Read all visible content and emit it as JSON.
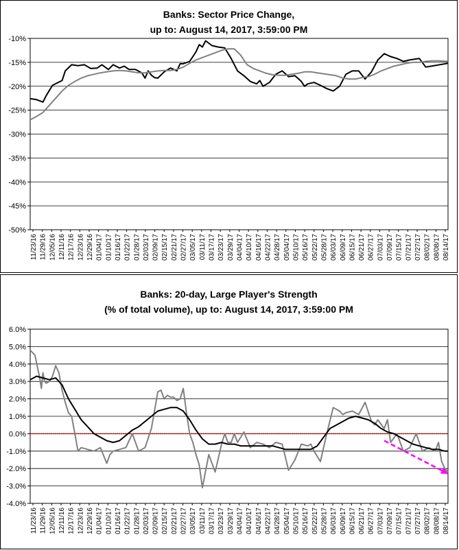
{
  "chart_data": [
    {
      "type": "line",
      "title": "Banks: Sector Price Change,",
      "subtitle": "up to: August 14, 2017, 3:59:00 PM",
      "ylim": [
        -0.5,
        -0.1
      ],
      "y_ticks": [
        -0.1,
        -0.15,
        -0.2,
        -0.25,
        -0.3,
        -0.35,
        -0.4,
        -0.45,
        -0.5
      ],
      "y_tick_labels": [
        "-10%",
        "-15%",
        "-20%",
        "-25%",
        "-30%",
        "-35%",
        "-40%",
        "-45%",
        "-50%"
      ],
      "x_tick_labels": [
        "11/23/16",
        "11/29/16",
        "12/05/16",
        "12/11/16",
        "12/17/16",
        "12/23/16",
        "12/29/16",
        "01/04/17",
        "01/10/17",
        "01/16/17",
        "01/22/17",
        "01/28/17",
        "02/03/17",
        "02/09/17",
        "02/15/17",
        "02/21/17",
        "02/27/17",
        "03/05/17",
        "03/11/17",
        "03/17/17",
        "03/23/17",
        "03/29/17",
        "04/04/17",
        "04/10/17",
        "04/16/17",
        "04/22/17",
        "04/28/17",
        "05/04/17",
        "05/10/17",
        "05/16/17",
        "05/22/17",
        "05/28/17",
        "06/03/17",
        "06/09/17",
        "06/15/17",
        "06/21/17",
        "06/27/17",
        "07/03/17",
        "07/09/17",
        "07/15/17",
        "07/21/17",
        "07/27/17",
        "08/02/17",
        "08/08/17",
        "08/14/17"
      ],
      "grid": true,
      "series": [
        {
          "color": "#000000",
          "x": [
            0,
            4,
            8,
            10,
            14,
            20,
            22,
            26,
            30,
            34,
            38,
            42,
            45,
            49,
            52,
            56,
            59,
            62,
            66,
            70,
            72,
            74,
            76,
            78,
            80,
            84,
            88,
            92,
            94,
            96,
            100,
            102,
            104,
            106,
            108,
            110,
            114,
            118,
            122,
            126,
            130,
            134,
            138,
            142,
            144,
            146,
            150,
            154,
            158,
            162,
            166,
            170,
            172,
            174,
            178,
            182,
            186,
            190,
            194,
            198,
            202,
            206,
            210,
            214,
            218,
            222,
            226,
            230,
            234,
            238,
            244,
            248,
            262
          ],
          "values": [
            -0.226,
            -0.228,
            -0.233,
            -0.22,
            -0.198,
            -0.188,
            -0.168,
            -0.155,
            -0.157,
            -0.155,
            -0.163,
            -0.162,
            -0.155,
            -0.165,
            -0.155,
            -0.162,
            -0.158,
            -0.165,
            -0.165,
            -0.172,
            -0.183,
            -0.168,
            -0.177,
            -0.182,
            -0.183,
            -0.17,
            -0.162,
            -0.168,
            -0.153,
            -0.153,
            -0.148,
            -0.138,
            -0.128,
            -0.113,
            -0.118,
            -0.105,
            -0.115,
            -0.118,
            -0.12,
            -0.142,
            -0.168,
            -0.178,
            -0.19,
            -0.195,
            -0.188,
            -0.2,
            -0.192,
            -0.175,
            -0.168,
            -0.18,
            -0.178,
            -0.19,
            -0.2,
            -0.195,
            -0.192,
            -0.198,
            -0.205,
            -0.21,
            -0.2,
            -0.175,
            -0.168,
            -0.168,
            -0.185,
            -0.17,
            -0.145,
            -0.132,
            -0.138,
            -0.142,
            -0.148,
            -0.145,
            -0.142,
            -0.16,
            -0.152
          ]
        },
        {
          "color": "#808080",
          "x": [
            0,
            4,
            8,
            12,
            16,
            20,
            24,
            28,
            32,
            36,
            40,
            44,
            48,
            52,
            56,
            60,
            64,
            68,
            72,
            76,
            80,
            84,
            88,
            92,
            96,
            100,
            104,
            108,
            112,
            116,
            120,
            124,
            128,
            132,
            136,
            140,
            144,
            148,
            152,
            156,
            160,
            164,
            168,
            172,
            176,
            180,
            184,
            188,
            192,
            196,
            200,
            204,
            208,
            212,
            216,
            220,
            224,
            228,
            232,
            236,
            240,
            244,
            248,
            252,
            256,
            262
          ],
          "values": [
            -0.27,
            -0.263,
            -0.255,
            -0.24,
            -0.225,
            -0.21,
            -0.198,
            -0.19,
            -0.183,
            -0.178,
            -0.175,
            -0.172,
            -0.17,
            -0.168,
            -0.167,
            -0.168,
            -0.17,
            -0.172,
            -0.172,
            -0.17,
            -0.168,
            -0.167,
            -0.167,
            -0.165,
            -0.16,
            -0.152,
            -0.145,
            -0.14,
            -0.135,
            -0.13,
            -0.125,
            -0.122,
            -0.122,
            -0.135,
            -0.155,
            -0.163,
            -0.168,
            -0.173,
            -0.176,
            -0.177,
            -0.177,
            -0.175,
            -0.173,
            -0.17,
            -0.17,
            -0.172,
            -0.174,
            -0.176,
            -0.178,
            -0.183,
            -0.185,
            -0.185,
            -0.182,
            -0.18,
            -0.175,
            -0.168,
            -0.163,
            -0.158,
            -0.155,
            -0.152,
            -0.15,
            -0.15,
            -0.148,
            -0.147,
            -0.147,
            -0.148
          ]
        }
      ]
    },
    {
      "type": "line",
      "title": "Banks: 20-day, Large Player's Strength",
      "subtitle": "(% of total volume), up to: August 14, 2017, 3:59:00 PM",
      "ylim": [
        -0.04,
        0.06
      ],
      "y_ticks": [
        0.06,
        0.05,
        0.04,
        0.03,
        0.02,
        0.01,
        0.0,
        -0.01,
        -0.02,
        -0.03,
        -0.04
      ],
      "y_tick_labels": [
        "6.0%",
        "5.0%",
        "4.0%",
        "3.0%",
        "2.0%",
        "1.0%",
        "0.0%",
        "-1.0%",
        "-2.0%",
        "-3.0%",
        "-4.0%"
      ],
      "x_tick_labels": [
        "11/23/16",
        "11/29/16",
        "12/05/16",
        "12/11/16",
        "12/17/16",
        "12/23/16",
        "12/29/16",
        "01/04/17",
        "01/10/17",
        "01/16/17",
        "01/22/17",
        "01/28/17",
        "02/03/17",
        "02/09/17",
        "02/15/17",
        "02/21/17",
        "02/27/17",
        "03/05/17",
        "03/11/17",
        "03/17/17",
        "03/23/17",
        "03/29/17",
        "04/04/17",
        "04/10/17",
        "04/16/17",
        "04/22/17",
        "04/28/17",
        "05/04/17",
        "05/10/17",
        "05/16/17",
        "05/22/17",
        "05/28/17",
        "06/03/17",
        "06/09/17",
        "06/15/17",
        "06/21/17",
        "06/27/17",
        "07/03/17",
        "07/09/17",
        "07/15/17",
        "07/21/17",
        "07/27/17",
        "08/02/17",
        "08/08/17",
        "08/14/17"
      ],
      "grid": true,
      "reference_line": {
        "value": 0.0,
        "color": "#cc0000"
      },
      "trend_arrow": {
        "color": "#ff00ff",
        "x_start": 222,
        "y_start": -0.004,
        "x_end": 262,
        "y_end": -0.023
      },
      "series": [
        {
          "color": "#808080",
          "x": [
            0,
            3,
            6,
            7,
            8,
            9,
            10,
            12,
            14,
            16,
            18,
            20,
            22,
            24,
            26,
            28,
            30,
            32,
            36,
            40,
            44,
            48,
            50,
            52,
            56,
            60,
            64,
            68,
            72,
            76,
            80,
            82,
            84,
            86,
            88,
            90,
            92,
            94,
            96,
            98,
            100,
            102,
            104,
            106,
            108,
            112,
            116,
            120,
            122,
            124,
            126,
            128,
            130,
            134,
            138,
            142,
            146,
            150,
            154,
            158,
            162,
            166,
            170,
            174,
            176,
            178,
            182,
            186,
            190,
            194,
            196,
            198,
            202,
            206,
            210,
            214,
            216,
            218,
            222,
            224,
            226,
            230,
            234,
            238,
            242,
            246,
            250,
            254,
            256,
            258,
            260,
            262
          ],
          "values": [
            0.048,
            0.045,
            0.032,
            0.026,
            0.035,
            0.03,
            0.029,
            0.03,
            0.033,
            0.039,
            0.035,
            0.025,
            0.018,
            0.012,
            0.01,
            0.0,
            -0.01,
            -0.008,
            -0.009,
            -0.01,
            -0.008,
            -0.017,
            -0.012,
            -0.01,
            -0.009,
            -0.008,
            0.0,
            -0.01,
            -0.008,
            0.003,
            0.024,
            0.025,
            0.02,
            0.022,
            0.021,
            0.021,
            0.019,
            0.02,
            0.026,
            0.012,
            0.0,
            -0.005,
            -0.012,
            -0.018,
            -0.031,
            -0.012,
            -0.022,
            -0.006,
            0.0,
            -0.005,
            -0.005,
            0.0,
            -0.005,
            0.001,
            -0.008,
            -0.005,
            -0.006,
            -0.008,
            -0.005,
            -0.006,
            -0.021,
            -0.015,
            -0.006,
            -0.007,
            -0.006,
            -0.01,
            -0.016,
            0.0,
            0.015,
            0.013,
            0.011,
            0.012,
            0.013,
            0.011,
            0.018,
            0.007,
            0.005,
            0.008,
            0.003,
            0.008,
            -0.005,
            0.0,
            -0.01,
            -0.008,
            0.0,
            -0.01,
            -0.008,
            -0.01,
            -0.005,
            -0.016,
            -0.02,
            -0.022
          ]
        },
        {
          "color": "#000000",
          "x": [
            0,
            4,
            8,
            12,
            16,
            20,
            24,
            28,
            32,
            36,
            40,
            44,
            48,
            52,
            56,
            60,
            64,
            68,
            72,
            76,
            80,
            84,
            88,
            92,
            96,
            100,
            104,
            108,
            112,
            116,
            120,
            124,
            128,
            132,
            136,
            140,
            144,
            148,
            152,
            156,
            160,
            164,
            168,
            172,
            176,
            180,
            184,
            188,
            192,
            196,
            200,
            204,
            208,
            212,
            216,
            220,
            224,
            228,
            232,
            236,
            240,
            244,
            248,
            252,
            256,
            260,
            262
          ],
          "values": [
            0.031,
            0.033,
            0.032,
            0.031,
            0.032,
            0.028,
            0.02,
            0.014,
            0.008,
            0.004,
            0.0,
            -0.002,
            -0.004,
            -0.005,
            -0.004,
            -0.001,
            0.002,
            0.004,
            0.007,
            0.01,
            0.013,
            0.014,
            0.015,
            0.015,
            0.013,
            0.008,
            0.002,
            -0.003,
            -0.006,
            -0.006,
            -0.005,
            -0.006,
            -0.006,
            -0.007,
            -0.007,
            -0.007,
            -0.007,
            -0.007,
            -0.007,
            -0.008,
            -0.009,
            -0.009,
            -0.009,
            -0.009,
            -0.009,
            -0.007,
            -0.002,
            0.003,
            0.005,
            0.007,
            0.009,
            0.01,
            0.009,
            0.008,
            0.006,
            0.003,
            0.001,
            0.0,
            -0.002,
            -0.004,
            -0.006,
            -0.007,
            -0.008,
            -0.009,
            -0.009,
            -0.01,
            -0.01
          ]
        }
      ]
    }
  ]
}
